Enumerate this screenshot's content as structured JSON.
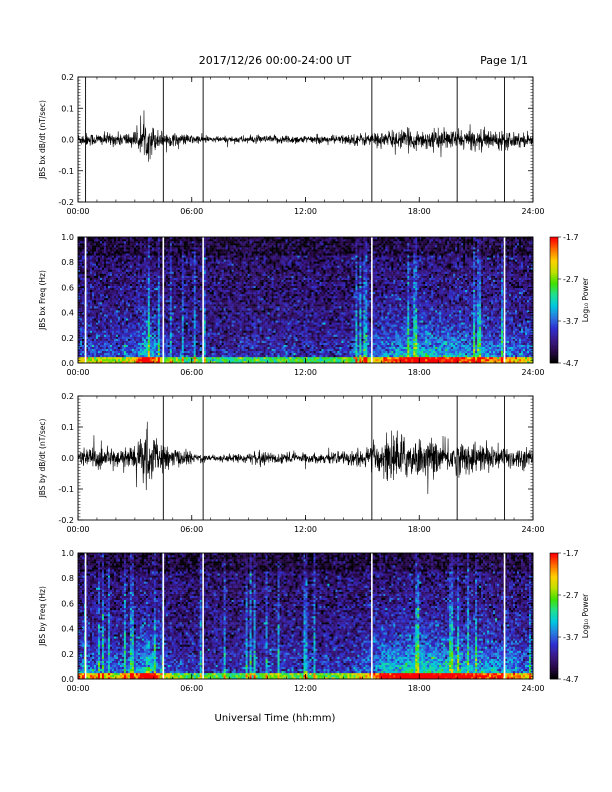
{
  "header": {
    "date_range": "2017/12/26  00:00-24:00 UT",
    "page": "Page 1/1"
  },
  "footer": {
    "xlabel": "Universal Time (hh:mm)"
  },
  "colors": {
    "trace": "#000000",
    "spectrogram_scale": [
      "#000000",
      "#2a0a4a",
      "#3a1a8a",
      "#2f2fd0",
      "#2a7ae0",
      "#00c8e0",
      "#20e090",
      "#40e000",
      "#c0e000",
      "#ffd000",
      "#ff7000",
      "#ff0000"
    ]
  },
  "chart_data": [
    {
      "type": "line",
      "ylabel": "JBS bx dB/dt (nT/sec)",
      "xlim": [
        0,
        24
      ],
      "ylim": [
        -0.2,
        0.2
      ],
      "x_ticks": [
        "00:00",
        "06:00",
        "12:00",
        "18:00",
        "24:00"
      ],
      "y_ticks": [
        "-0.2",
        "-0.1",
        "0.0",
        "0.1",
        "0.2"
      ],
      "vlines_hours": [
        0.4,
        4.5,
        6.6,
        15.5,
        20.0,
        22.5
      ],
      "envelope": {
        "x": [
          0,
          1,
          2,
          3,
          3.7,
          4.2,
          5,
          6,
          7,
          8,
          9,
          10,
          11,
          12,
          13,
          14,
          15,
          16,
          17,
          18,
          19,
          20,
          21,
          22,
          23,
          24
        ],
        "amplitude": [
          0.02,
          0.02,
          0.02,
          0.025,
          0.06,
          0.03,
          0.02,
          0.015,
          0.01,
          0.01,
          0.012,
          0.012,
          0.015,
          0.012,
          0.012,
          0.015,
          0.02,
          0.025,
          0.03,
          0.03,
          0.03,
          0.03,
          0.03,
          0.03,
          0.025,
          0.02
        ]
      }
    },
    {
      "type": "heatmap",
      "ylabel": "JBS bx Freq (Hz)",
      "xlim": [
        0,
        24
      ],
      "ylim": [
        0.0,
        1.0
      ],
      "x_ticks": [
        "00:00",
        "06:00",
        "12:00",
        "18:00",
        "24:00"
      ],
      "y_ticks": [
        "0.0",
        "0.2",
        "0.4",
        "0.6",
        "0.8",
        "1.0"
      ],
      "vlines_hours": [
        0.4,
        4.5,
        6.6,
        15.5,
        22.5
      ],
      "colorbar": {
        "label": "Log₁₀ Power",
        "ticks": [
          "-1.7",
          "-2.7",
          "-3.7",
          "-4.7"
        ],
        "range": [
          -4.7,
          -1.7
        ]
      },
      "activity": {
        "x": [
          0,
          1,
          2,
          3,
          3.7,
          4.2,
          5,
          6,
          7,
          8,
          9,
          10,
          11,
          12,
          13,
          14,
          15,
          16,
          17,
          18,
          19,
          20,
          21,
          22,
          23,
          24
        ],
        "level": [
          0.5,
          0.4,
          0.4,
          0.5,
          0.9,
          0.5,
          0.3,
          0.25,
          0.2,
          0.2,
          0.25,
          0.25,
          0.3,
          0.25,
          0.25,
          0.3,
          0.4,
          0.55,
          0.7,
          0.8,
          0.75,
          0.7,
          0.6,
          0.6,
          0.55,
          0.4
        ]
      }
    },
    {
      "type": "line",
      "ylabel": "JBS by dB/dt (nT/sec)",
      "xlim": [
        0,
        24
      ],
      "ylim": [
        -0.2,
        0.2
      ],
      "x_ticks": [
        "00:00",
        "06:00",
        "12:00",
        "18:00",
        "24:00"
      ],
      "y_ticks": [
        "-0.2",
        "-0.1",
        "0.0",
        "0.1",
        "0.2"
      ],
      "vlines_hours": [
        4.5,
        6.6,
        15.5,
        20.0,
        22.5
      ],
      "envelope": {
        "x": [
          0,
          1,
          2,
          3,
          3.7,
          4.2,
          5,
          6,
          7,
          8,
          9,
          10,
          11,
          12,
          13,
          14,
          15,
          16,
          16.5,
          17,
          18,
          19,
          20,
          21,
          22,
          23,
          24
        ],
        "amplitude": [
          0.03,
          0.035,
          0.03,
          0.04,
          0.1,
          0.05,
          0.03,
          0.02,
          0.01,
          0.012,
          0.015,
          0.02,
          0.02,
          0.015,
          0.015,
          0.02,
          0.03,
          0.05,
          0.09,
          0.07,
          0.06,
          0.05,
          0.05,
          0.05,
          0.04,
          0.035,
          0.03
        ]
      }
    },
    {
      "type": "heatmap",
      "ylabel": "JBS by Freq (Hz)",
      "xlim": [
        0,
        24
      ],
      "ylim": [
        0.0,
        1.0
      ],
      "x_ticks": [
        "00:00",
        "06:00",
        "12:00",
        "18:00",
        "24:00"
      ],
      "y_ticks": [
        "0.0",
        "0.2",
        "0.4",
        "0.6",
        "0.8",
        "1.0"
      ],
      "vlines_hours": [
        0.4,
        4.5,
        6.6,
        15.5,
        22.5
      ],
      "colorbar": {
        "label": "Log₁₀ Power",
        "ticks": [
          "-1.7",
          "-2.7",
          "-3.7",
          "-4.7"
        ],
        "range": [
          -4.7,
          -1.7
        ]
      },
      "activity": {
        "x": [
          0,
          1,
          2,
          3,
          3.7,
          4.2,
          5,
          6,
          7,
          8,
          9,
          10,
          11,
          12,
          13,
          14,
          15,
          16,
          17,
          18,
          19,
          20,
          21,
          22,
          23,
          24
        ],
        "level": [
          0.6,
          0.5,
          0.45,
          0.55,
          1.0,
          0.55,
          0.35,
          0.3,
          0.25,
          0.25,
          0.3,
          0.3,
          0.35,
          0.3,
          0.3,
          0.35,
          0.45,
          0.7,
          0.85,
          0.9,
          0.85,
          0.8,
          0.7,
          0.7,
          0.6,
          0.45
        ]
      }
    }
  ]
}
